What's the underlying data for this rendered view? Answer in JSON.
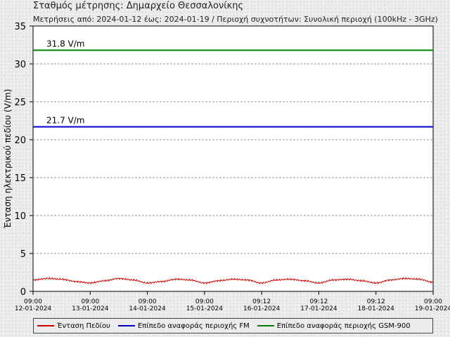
{
  "header": {
    "title": "Σταθμός μέτρησης: Δημαρχείο Θεσσαλονίκης",
    "subtitle": "Μετρήσεις από: 2024-01-12 έως: 2024-01-19 / Περιοχή συχνοτήτων: Συνολική περιοχή (100kHz - 3GHz)"
  },
  "chart_data": {
    "type": "line",
    "ylabel": "Ένταση ηλεκτρικού πεδίου (V/m)",
    "ylim": [
      0,
      35
    ],
    "yticks": [
      0,
      5,
      10,
      15,
      20,
      25,
      30,
      35
    ],
    "grid": "horizontal dashed",
    "x_ticks": [
      {
        "time": "09:00",
        "date": "12-01-2024"
      },
      {
        "time": "09:00",
        "date": "13-01-2024"
      },
      {
        "time": "09:00",
        "date": "14-01-2024"
      },
      {
        "time": "09:00",
        "date": "15-01-2024"
      },
      {
        "time": "09:12",
        "date": "16-01-2024"
      },
      {
        "time": "09:12",
        "date": "17-01-2024"
      },
      {
        "time": "09:12",
        "date": "18-01-2024"
      },
      {
        "time": "09:00",
        "date": "19-01-2024"
      }
    ],
    "series": [
      {
        "name": "Ένταση Πεδίου",
        "color": "#cc0000",
        "x_days": [
          0,
          0.25,
          0.5,
          0.75,
          1,
          1.25,
          1.5,
          1.75,
          2,
          2.25,
          2.5,
          2.75,
          3,
          3.25,
          3.5,
          3.75,
          4,
          4.25,
          4.5,
          4.75,
          5,
          5.25,
          5.5,
          5.75,
          6,
          6.25,
          6.5,
          6.75,
          7
        ],
        "values": [
          1.5,
          1.7,
          1.6,
          1.3,
          1.1,
          1.4,
          1.7,
          1.5,
          1.1,
          1.3,
          1.6,
          1.5,
          1.1,
          1.4,
          1.6,
          1.5,
          1.1,
          1.5,
          1.6,
          1.4,
          1.1,
          1.5,
          1.6,
          1.4,
          1.1,
          1.5,
          1.7,
          1.6,
          1.2
        ]
      },
      {
        "name": "Επίπεδο αναφοράς περιοχής FM",
        "color": "#0000cc",
        "values": [
          21.7,
          21.7
        ]
      },
      {
        "name": "Επίπεδο αναφοράς περιοχής GSM-900",
        "color": "#008000",
        "values": [
          31.8,
          31.8
        ]
      }
    ],
    "annotations": [
      {
        "text": "31.8 V/m",
        "y": 31.8
      },
      {
        "text": "21.7 V/m",
        "y": 21.7
      }
    ],
    "legend_position": "bottom"
  }
}
